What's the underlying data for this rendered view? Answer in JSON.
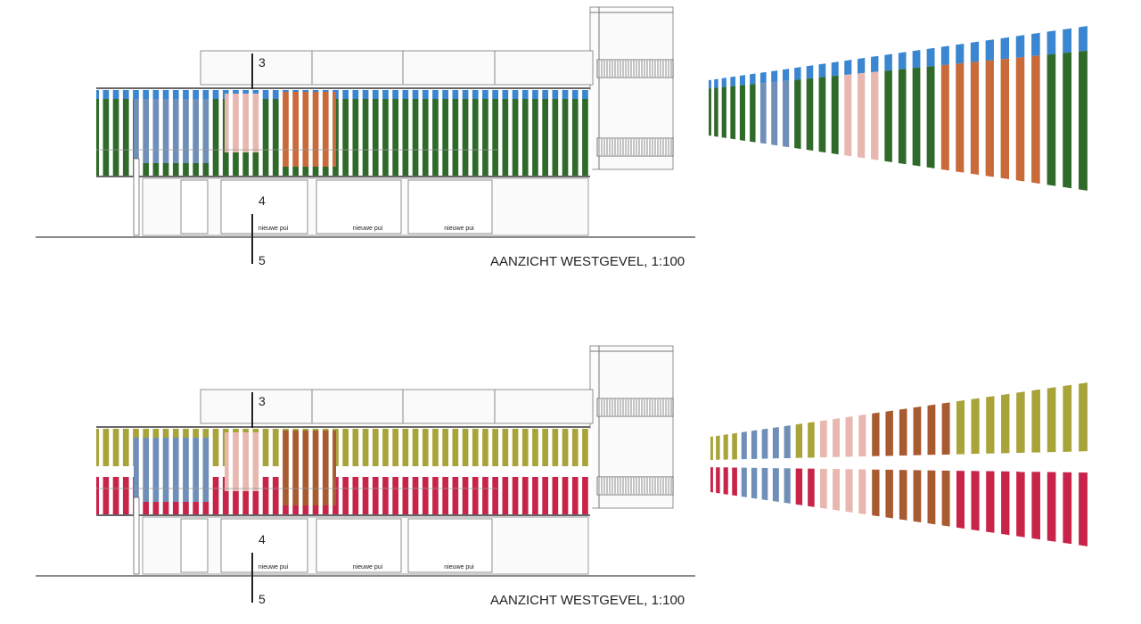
{
  "drawings": [
    {
      "title": "AANZICHT WESTGEVEL, 1:100",
      "section_marks": [
        "3",
        "4",
        "5"
      ],
      "window_labels": [
        "nieuwe pui",
        "nieuwe pui",
        "nieuwe pui"
      ],
      "scheme": "photo-grass",
      "colors": {
        "sky": "#3a86d0",
        "grass": "#2f6a2a",
        "grass_light": "#4c8a3a",
        "box": "#c96a3a",
        "jeans": "#6f8fb8",
        "legs": "#e8b8b0"
      }
    },
    {
      "title": "AANZICHT WESTGEVEL, 1:100",
      "section_marks": [
        "3",
        "4",
        "5"
      ],
      "window_labels": [
        "nieuwe pui",
        "nieuwe pui",
        "nieuwe pui"
      ],
      "scheme": "olive-red",
      "colors": {
        "top": "#a9a43a",
        "stripe": "#ffffff",
        "bottom": "#c8244a",
        "box": "#a85a30",
        "jeans": "#6f8fb8",
        "legs": "#e8b8b0"
      }
    }
  ]
}
